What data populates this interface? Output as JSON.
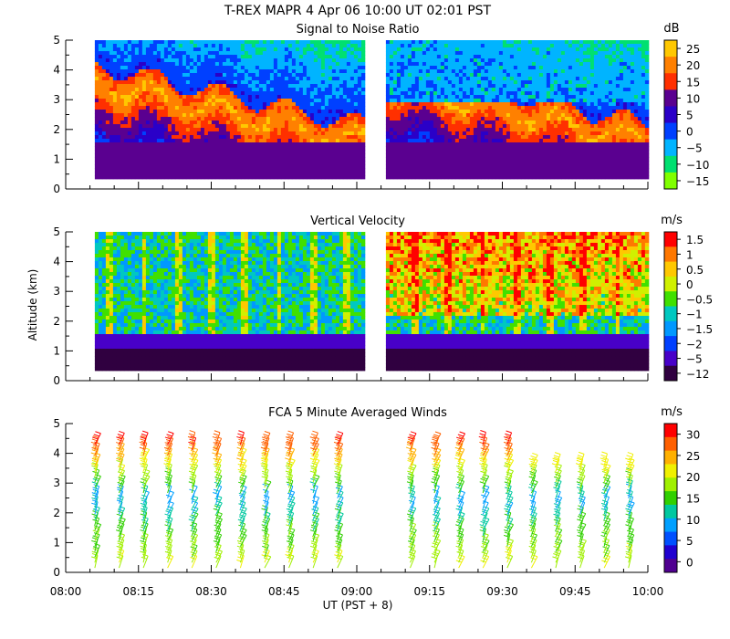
{
  "header": {
    "title": "T-REX   MAPR   4 Apr 06   10:00 UT   02:01   PST"
  },
  "shared": {
    "ylabel": "Altitude (km)",
    "xlabel": "UT  (PST + 8)",
    "x_ticks": [
      "08:00",
      "08:15",
      "08:30",
      "08:45",
      "09:00",
      "09:15",
      "09:30",
      "09:45",
      "10:00"
    ],
    "x_range_minutes": [
      0,
      120
    ],
    "y_ticks": [
      "0",
      "1",
      "2",
      "3",
      "4",
      "5"
    ],
    "ylim_km": [
      0,
      5
    ]
  },
  "chart_data": [
    {
      "type": "heatmap",
      "title": "Signal to Noise Ratio",
      "colorbar_unit": "dB",
      "colorbar_labels": [
        "25",
        "20",
        "15",
        "10",
        "5",
        "0",
        "−5",
        "−10",
        "−15"
      ],
      "colorbar_colors": [
        "#ffc800",
        "#ff8000",
        "#ff3000",
        "#5a0090",
        "#2a00c8",
        "#0040ff",
        "#00b4ff",
        "#00e070",
        "#80ff00"
      ],
      "data_gap_minutes": [
        61,
        66
      ],
      "segments": [
        {
          "x_start_min": 6,
          "x_end_min": 61,
          "alt_km": [
            0.35,
            5.0
          ]
        },
        {
          "x_start_min": 66,
          "x_end_min": 120,
          "alt_km": [
            0.35,
            5.0
          ]
        }
      ]
    },
    {
      "type": "heatmap",
      "title": "Vertical Velocity",
      "colorbar_unit": "m/s",
      "colorbar_labels": [
        "1.5",
        "1",
        "0.5",
        "0",
        "−0.5",
        "−1",
        "−1.5",
        "−2",
        "−5",
        "−12"
      ],
      "colorbar_colors": [
        "#ff0000",
        "#ff7800",
        "#ffc800",
        "#d0f000",
        "#40e000",
        "#00c8c0",
        "#0098ff",
        "#0040ff",
        "#4800c8",
        "#300040"
      ],
      "data_gap_minutes": [
        61,
        66
      ],
      "segments": [
        {
          "x_start_min": 6,
          "x_end_min": 61,
          "alt_km": [
            0.35,
            5.0
          ]
        },
        {
          "x_start_min": 66,
          "x_end_min": 120,
          "alt_km": [
            0.35,
            5.0
          ]
        }
      ]
    },
    {
      "type": "wind_barbs",
      "title": "FCA 5 Minute Averaged Winds",
      "colorbar_unit": "m/s",
      "colorbar_labels": [
        "30",
        "25",
        "20",
        "15",
        "10",
        "5",
        "0"
      ],
      "colorbar_colors": [
        "#ff0000",
        "#ff6000",
        "#ffb000",
        "#f0f000",
        "#a0f000",
        "#30d000",
        "#00c8a0",
        "#00a0ff",
        "#0050ff",
        "#2000d0",
        "#500090"
      ],
      "profile_times_min": [
        6,
        11,
        16,
        21,
        26,
        31,
        36,
        41,
        46,
        51,
        56,
        71,
        76,
        81,
        86,
        91,
        96,
        101,
        106,
        111,
        116
      ]
    }
  ]
}
